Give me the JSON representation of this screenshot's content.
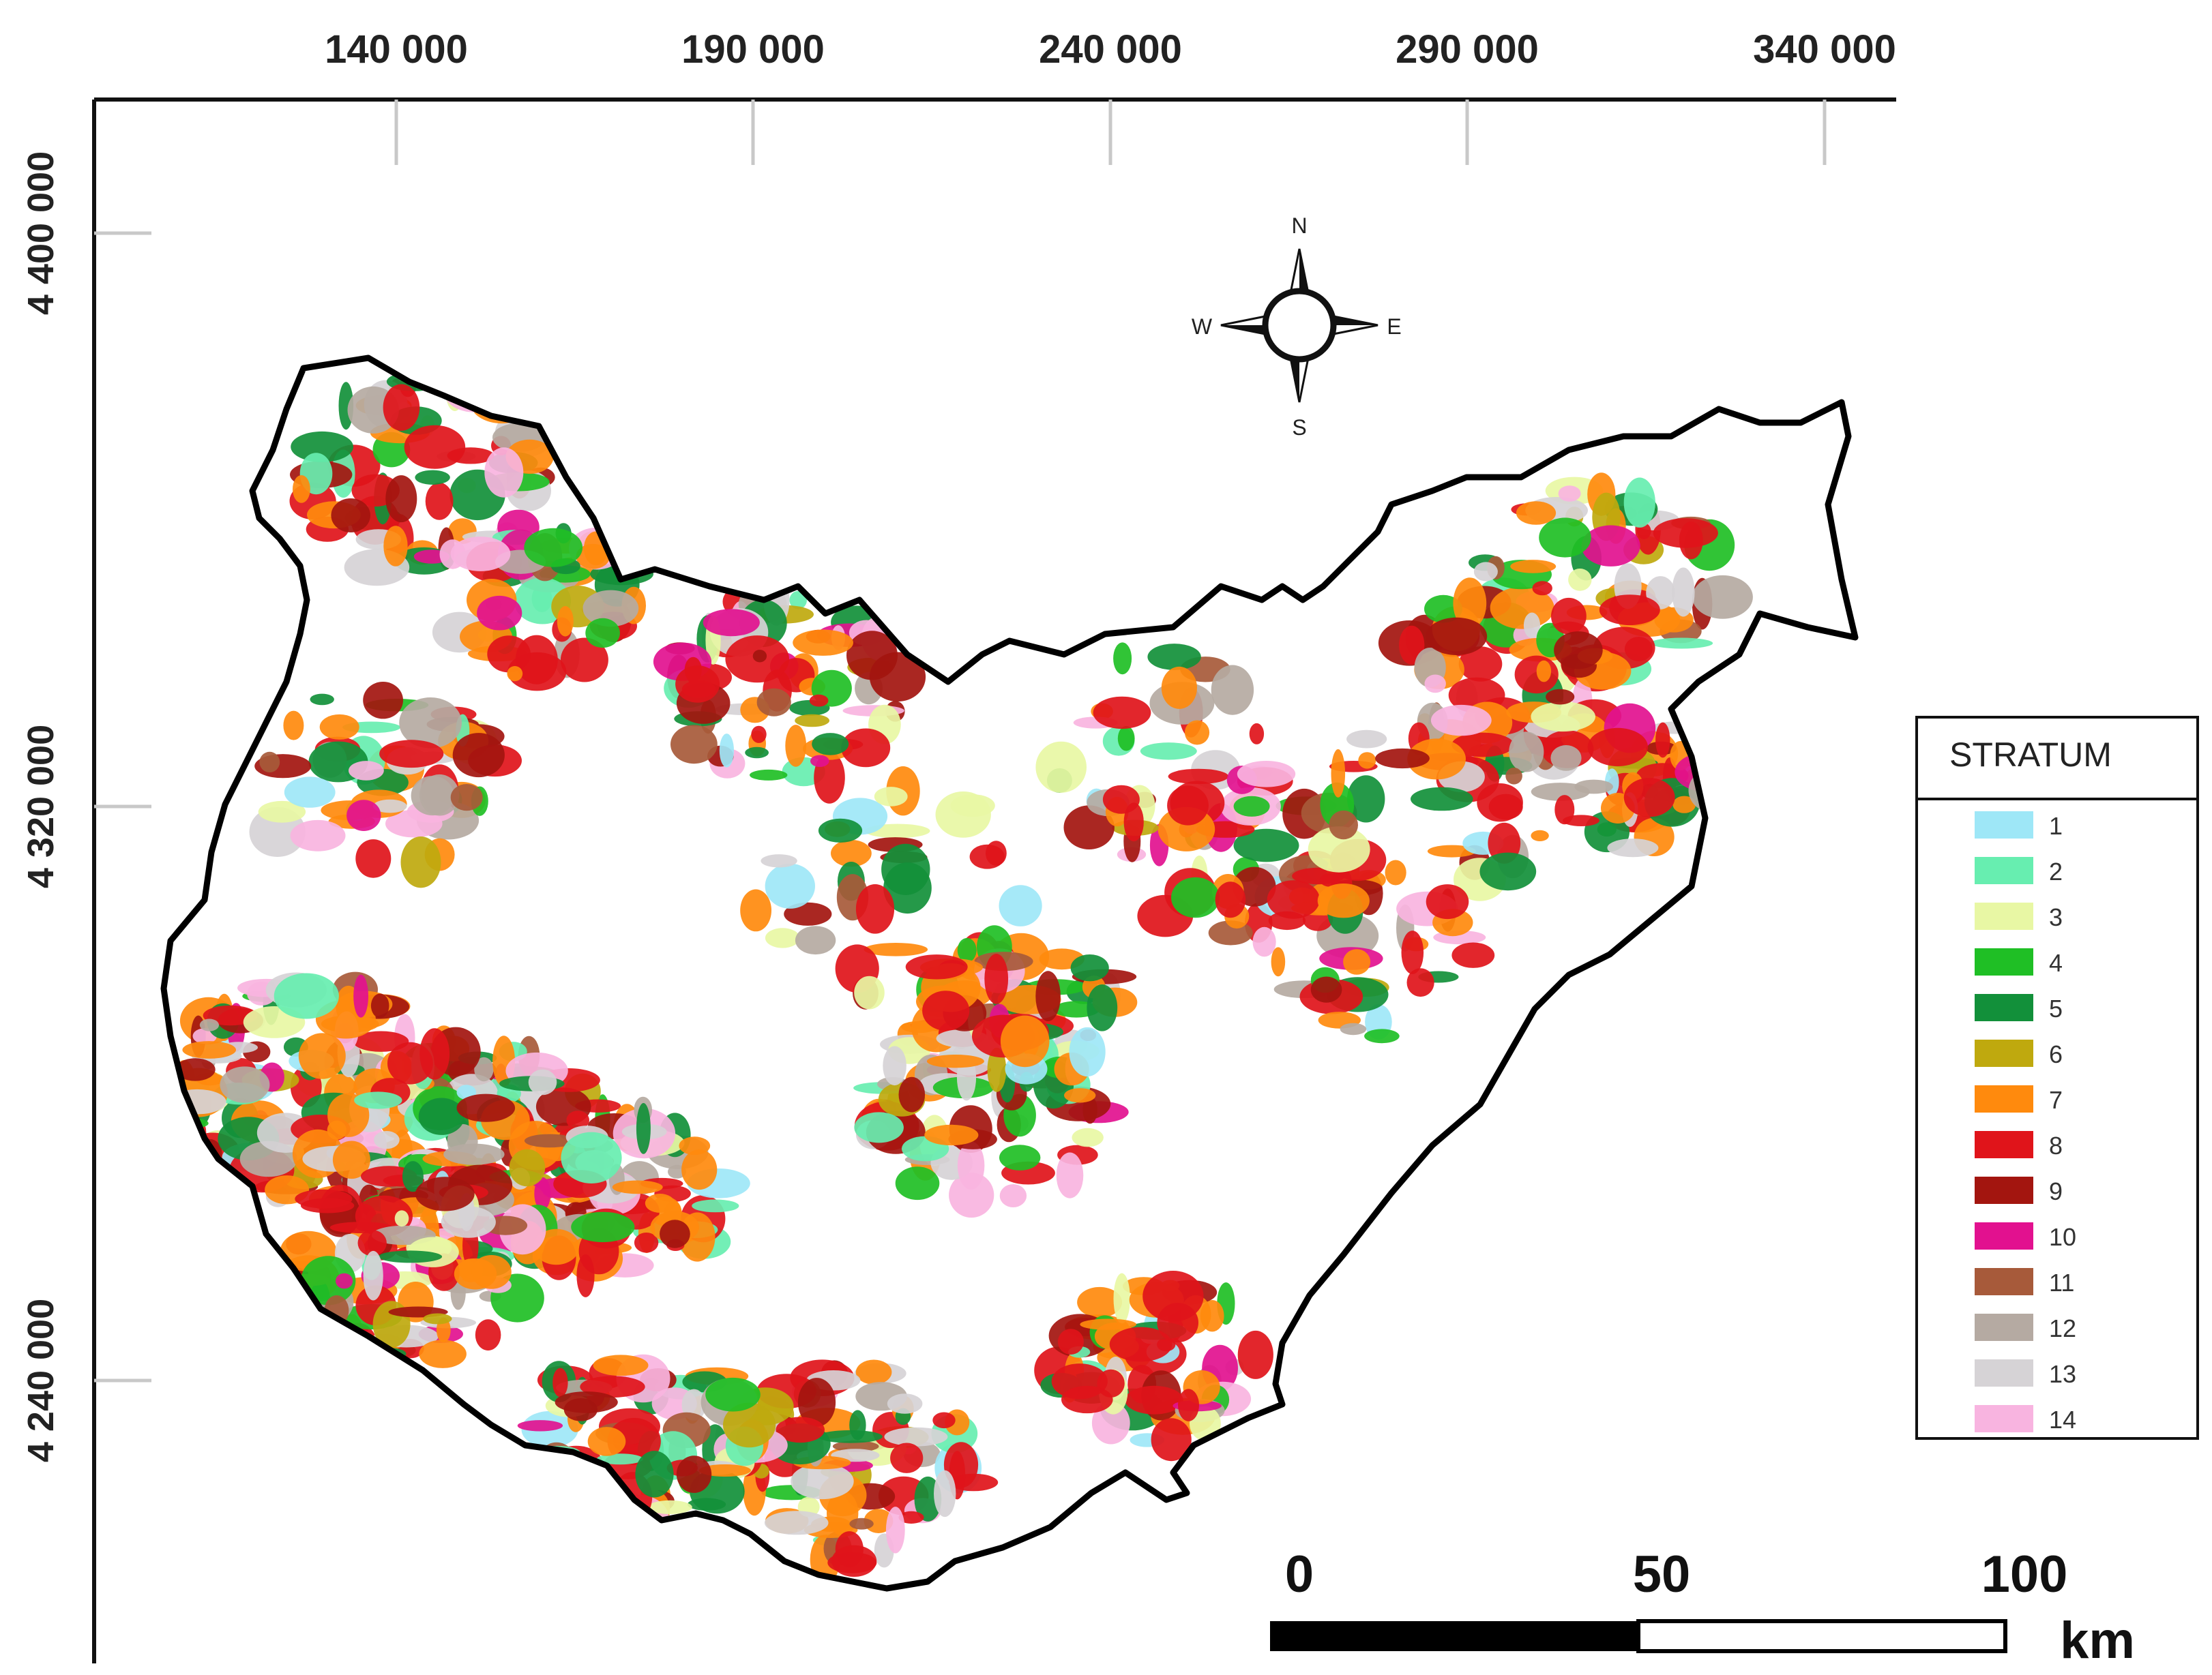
{
  "map": {
    "x_ticks": [
      "140 000",
      "190 000",
      "240 000",
      "290 000",
      "340 000"
    ],
    "y_ticks": [
      "4 400 000",
      "4 320 000",
      "4 240 000"
    ],
    "compass": {
      "n": "N",
      "e": "E",
      "s": "S",
      "w": "W"
    },
    "scale_bar": {
      "labels": [
        "0",
        "50",
        "100"
      ],
      "unit": "km"
    },
    "legend": {
      "title": "STRATUM",
      "items": [
        {
          "label": "1",
          "color": "#9ee7f7"
        },
        {
          "label": "2",
          "color": "#67eeb0"
        },
        {
          "label": "3",
          "color": "#e8f7a4"
        },
        {
          "label": "4",
          "color": "#1fbf25"
        },
        {
          "label": "5",
          "color": "#12903a"
        },
        {
          "label": "6",
          "color": "#bfa90e"
        },
        {
          "label": "7",
          "color": "#ff8a0d"
        },
        {
          "label": "8",
          "color": "#e0141a"
        },
        {
          "label": "9",
          "color": "#a3150f"
        },
        {
          "label": "10",
          "color": "#e2118f"
        },
        {
          "label": "11",
          "color": "#a75a3a"
        },
        {
          "label": "12",
          "color": "#b5aaa2"
        },
        {
          "label": "13",
          "color": "#d6d3d6"
        },
        {
          "label": "14",
          "color": "#f8b4e0"
        }
      ]
    }
  }
}
